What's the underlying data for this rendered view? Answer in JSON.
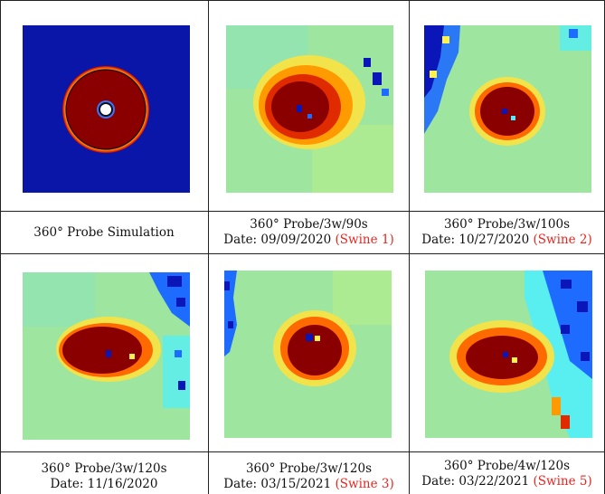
{
  "cells": [
    {
      "line1": "360° Probe Simulation",
      "line2": "",
      "swine": ""
    },
    {
      "line1": "360° Probe/3w/90s",
      "line2": "Date: 09/09/2020",
      "swine": "(Swine 1)"
    },
    {
      "line1": "360° Probe/3w/100s",
      "line2": "Date: 10/27/2020",
      "swine": "(Swine 2)"
    },
    {
      "line1": "360° Probe/3w/120s",
      "line2": "Date: 11/16/2020",
      "swine": ""
    },
    {
      "line1": "360° Probe/3w/120s",
      "line2": "Date: 03/15/2021",
      "swine": "(Swine 3)"
    },
    {
      "line1": "360° Probe/4w/120s",
      "line2": "Date: 03/22/2021",
      "swine": "(Swine 5)"
    }
  ],
  "colors": {
    "deep_blue": "#0a16b8",
    "dark_red": "#8a0000",
    "cyan_green": "#7fe0a8",
    "swine_red": "#e8261f"
  }
}
